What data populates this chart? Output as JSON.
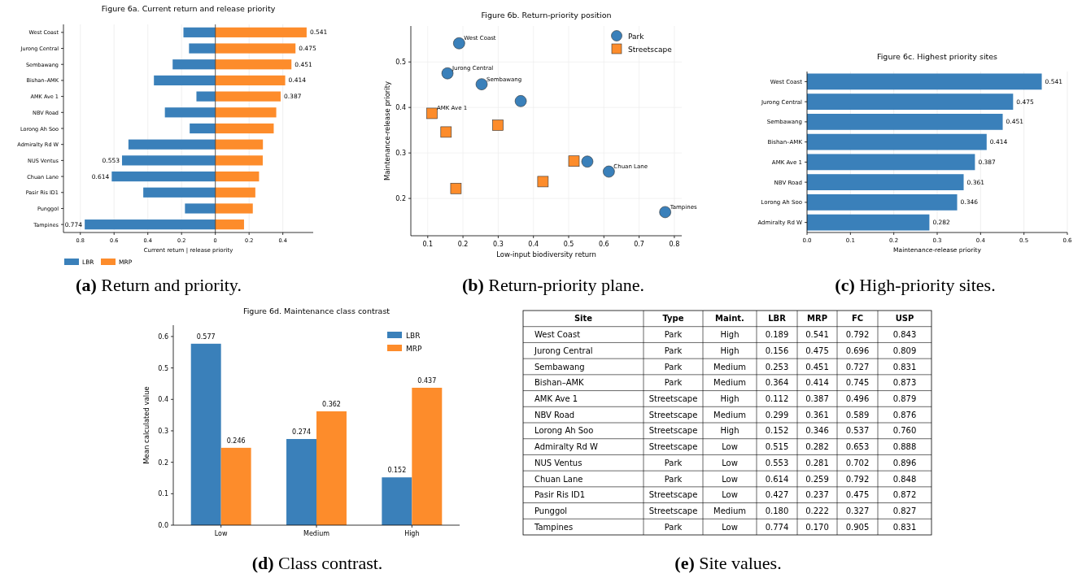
{
  "chart_data": [
    {
      "type": "bar",
      "orientation": "horizontal",
      "title": "Figure 6a. Current return and release priority",
      "xlabel": "Current return   |   release priority",
      "categories": [
        "West Coast",
        "Jurong Central",
        "Sembawang",
        "Bishan–AMK",
        "AMK Ave 1",
        "NBV Road",
        "Lorong Ah Soo",
        "Admiralty Rd W",
        "NUS Ventus",
        "Chuan Lane",
        "Pasir Ris ID1",
        "Punggol",
        "Tampines"
      ],
      "series": [
        {
          "name": "LBR",
          "color": "#3a80ba",
          "values": [
            0.189,
            0.156,
            0.253,
            0.364,
            0.112,
            0.299,
            0.152,
            0.515,
            0.553,
            0.614,
            0.427,
            0.18,
            0.774
          ],
          "base": [
            -0.189,
            -0.156,
            -0.253,
            -0.364,
            -0.112,
            -0.299,
            -0.152,
            -0.515,
            -0.553,
            -0.614,
            -0.427,
            -0.18,
            -0.774
          ],
          "value_labels": [
            null,
            null,
            null,
            null,
            null,
            null,
            null,
            null,
            "0.553",
            "0.614",
            null,
            null,
            "0.774"
          ]
        },
        {
          "name": "MRP",
          "color": "#fd8c2b",
          "values": [
            0.541,
            0.475,
            0.451,
            0.414,
            0.387,
            0.361,
            0.346,
            0.282,
            0.281,
            0.259,
            0.237,
            0.222,
            0.17
          ],
          "value_labels": [
            "0.541",
            "0.475",
            "0.451",
            "0.414",
            "0.387",
            null,
            null,
            null,
            null,
            null,
            null,
            null,
            null
          ]
        }
      ],
      "xlim": [
        -0.9,
        0.58
      ],
      "xticks": [
        {
          "value": -0.8,
          "label": "0.8"
        },
        {
          "value": -0.6,
          "label": "0.6"
        },
        {
          "value": -0.4,
          "label": "0.4"
        },
        {
          "value": -0.2,
          "label": "0.2"
        },
        0,
        0.2,
        0.4
      ],
      "ref_lines": [
        {
          "axis": "x",
          "value": 0,
          "color": "#333333"
        }
      ],
      "grid": "x",
      "legend": "bottom left",
      "annotations": [
        "(a) Return and priority."
      ]
    },
    {
      "type": "scatter",
      "title": "Figure 6b. Return-priority position",
      "xlabel": "Low-input biodiversity return",
      "ylabel": "Maintenance-release priority",
      "series": [
        {
          "name": "Park",
          "color": "#3a80ba",
          "marker": "circle",
          "x": [
            0.189,
            0.156,
            0.253,
            0.364,
            0.553,
            0.614,
            0.774
          ],
          "values": [
            0.541,
            0.475,
            0.451,
            0.414,
            0.281,
            0.259,
            0.17
          ]
        },
        {
          "name": "Streetscape",
          "color": "#fd8c2b",
          "marker": "square",
          "x": [
            0.112,
            0.299,
            0.152,
            0.515,
            0.427,
            0.18
          ],
          "values": [
            0.387,
            0.361,
            0.346,
            0.282,
            0.237,
            0.222
          ]
        }
      ],
      "xlim": [
        0.052,
        0.821
      ],
      "xticks": [
        0.1,
        0.2,
        0.3,
        0.4,
        0.5,
        0.6,
        0.7,
        0.8
      ],
      "ylim": [
        0.118,
        0.579
      ],
      "yticks": [
        0.2,
        0.3,
        0.4,
        0.5
      ],
      "grid": true,
      "legend": "top right",
      "annotations": [
        {
          "text": "West Coast",
          "x": 0.189,
          "y": 0.541
        },
        {
          "text": "Jurong Central",
          "x": 0.156,
          "y": 0.475
        },
        {
          "text": "Sembawang",
          "x": 0.253,
          "y": 0.451
        },
        {
          "text": "AMK Ave 1",
          "x": 0.112,
          "y": 0.387
        },
        {
          "text": "Chuan Lane",
          "x": 0.614,
          "y": 0.259
        },
        {
          "text": "Tampines",
          "x": 0.774,
          "y": 0.17
        },
        "(b) Return-priority plane."
      ]
    },
    {
      "type": "bar",
      "orientation": "horizontal",
      "title": "Figure 6c. Highest priority sites",
      "xlabel": "Maintenance-release priority",
      "categories": [
        "West Coast",
        "Jurong Central",
        "Sembawang",
        "Bishan–AMK",
        "AMK Ave 1",
        "NBV Road",
        "Lorong Ah Soo",
        "Admiralty Rd W"
      ],
      "values": [
        0.541,
        0.475,
        0.451,
        0.414,
        0.387,
        0.361,
        0.346,
        0.282
      ],
      "color": "#3a80ba",
      "data_labels": true,
      "xlim": [
        0,
        0.6
      ],
      "xticks": [
        {
          "value": 0,
          "label": "0.0"
        },
        0.1,
        0.2,
        0.3,
        0.4,
        0.5,
        0.6
      ],
      "grid": "x",
      "annotations": [
        "(c) High-priority sites."
      ]
    },
    {
      "type": "bar",
      "title": "Figure 6d. Maintenance class contrast",
      "ylabel": "Mean calculated value",
      "categories": [
        "Low",
        "Medium",
        "High"
      ],
      "series": [
        {
          "name": "LBR",
          "color": "#3a80ba",
          "values": [
            0.577,
            0.274,
            0.152
          ]
        },
        {
          "name": "MRP",
          "color": "#fd8c2b",
          "values": [
            0.246,
            0.362,
            0.437
          ]
        }
      ],
      "data_labels": true,
      "ylim": [
        0,
        0.636
      ],
      "yticks": [
        {
          "value": 0,
          "label": "0.0"
        },
        0.1,
        0.2,
        0.3,
        0.4,
        0.5,
        0.6
      ],
      "legend": "top right",
      "annotations": [
        "(d) Class contrast."
      ]
    },
    {
      "type": "other",
      "categories": [
        "Site",
        "Type",
        "Maint.",
        "LBR",
        "MRP",
        "FC",
        "USP"
      ],
      "cell_labels": [
        [
          "West Coast",
          "Park",
          "High",
          "0.189",
          "0.541",
          "0.792",
          "0.843"
        ],
        [
          "Jurong Central",
          "Park",
          "High",
          "0.156",
          "0.475",
          "0.696",
          "0.809"
        ],
        [
          "Sembawang",
          "Park",
          "Medium",
          "0.253",
          "0.451",
          "0.727",
          "0.831"
        ],
        [
          "Bishan–AMK",
          "Park",
          "Medium",
          "0.364",
          "0.414",
          "0.745",
          "0.873"
        ],
        [
          "AMK Ave 1",
          "Streetscape",
          "High",
          "0.112",
          "0.387",
          "0.496",
          "0.879"
        ],
        [
          "NBV Road",
          "Streetscape",
          "Medium",
          "0.299",
          "0.361",
          "0.589",
          "0.876"
        ],
        [
          "Lorong Ah Soo",
          "Streetscape",
          "High",
          "0.152",
          "0.346",
          "0.537",
          "0.760"
        ],
        [
          "Admiralty Rd W",
          "Streetscape",
          "Low",
          "0.515",
          "0.282",
          "0.653",
          "0.888"
        ],
        [
          "NUS Ventus",
          "Park",
          "Low",
          "0.553",
          "0.281",
          "0.702",
          "0.896"
        ],
        [
          "Chuan Lane",
          "Park",
          "Low",
          "0.614",
          "0.259",
          "0.792",
          "0.848"
        ],
        [
          "Pasir Ris ID1",
          "Streetscape",
          "Low",
          "0.427",
          "0.237",
          "0.475",
          "0.872"
        ],
        [
          "Punggol",
          "Streetscape",
          "Medium",
          "0.180",
          "0.222",
          "0.327",
          "0.827"
        ],
        [
          "Tampines",
          "Park",
          "Low",
          "0.774",
          "0.170",
          "0.905",
          "0.831"
        ]
      ],
      "annotations": [
        "(e) Site values."
      ]
    }
  ]
}
